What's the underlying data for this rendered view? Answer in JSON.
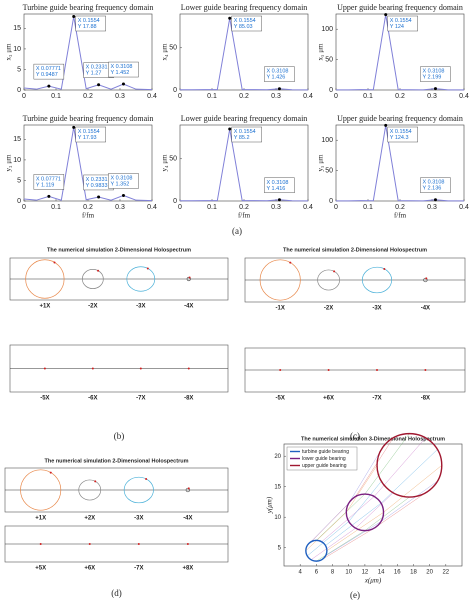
{
  "chart_data": [
    {
      "type": "line",
      "title": "Turbine guide bearing frequency domain",
      "ylabel": "x₃ μm",
      "x": [
        0,
        0.0389,
        0.0777,
        0.1166,
        0.1554,
        0.1943,
        0.2331,
        0.272,
        0.3108,
        0.35,
        0.4
      ],
      "values": [
        0.5,
        0.2,
        0.9487,
        0.2,
        17.88,
        0.3,
        1.27,
        0.2,
        1.452,
        0.2,
        0.1
      ],
      "color": "#8080d8",
      "xlim": [
        0,
        0.4
      ],
      "xticks": [
        0,
        0.1,
        0.2,
        0.3,
        0.4
      ],
      "ylim": [
        0,
        18.5
      ],
      "yticks": [
        0,
        5,
        10,
        15
      ],
      "datatips": [
        {
          "x": 0.0777,
          "y": 0.9487,
          "x_label": "X 0.07771",
          "y_label": "Y 0.9487"
        },
        {
          "x": 0.1554,
          "y": 17.88,
          "x_label": "X 0.1554",
          "y_label": "Y 17.88"
        },
        {
          "x": 0.2331,
          "y": 1.27,
          "x_label": "X 0.2331",
          "y_label": "Y 1.27"
        },
        {
          "x": 0.3108,
          "y": 1.452,
          "x_label": "X 0.3108",
          "y_label": "Y 1.452"
        }
      ]
    },
    {
      "type": "line",
      "title": "Lower guide bearing frequency domain",
      "ylabel": "x₄ μm",
      "x": [
        0,
        0.0389,
        0.0777,
        0.1166,
        0.1554,
        0.1943,
        0.2331,
        0.272,
        0.3108,
        0.35,
        0.4
      ],
      "values": [
        0.3,
        0.3,
        0.5,
        0.4,
        85.03,
        0.5,
        0.4,
        0.3,
        1.426,
        0.3,
        0.2
      ],
      "color": "#8080d8",
      "xlim": [
        0,
        0.4
      ],
      "xticks": [
        0,
        0.1,
        0.2,
        0.3,
        0.4
      ],
      "ylim": [
        0,
        90
      ],
      "yticks": [
        0,
        50
      ],
      "datatips": [
        {
          "x": 0.1554,
          "y": 85.03,
          "x_label": "X 0.1554",
          "y_label": "Y 85.03"
        },
        {
          "x": 0.3108,
          "y": 1.426,
          "x_label": "X 0.3108",
          "y_label": "Y 1.426"
        }
      ]
    },
    {
      "type": "line",
      "title": "Upper guide bearing frequency domain",
      "ylabel": "x₅ μm",
      "x": [
        0,
        0.0389,
        0.0777,
        0.1166,
        0.1554,
        0.1943,
        0.2331,
        0.272,
        0.3108,
        0.35,
        0.4
      ],
      "values": [
        0.3,
        0.3,
        0.6,
        0.5,
        124,
        0.6,
        0.5,
        0.3,
        2.199,
        0.3,
        0.2
      ],
      "color": "#8080d8",
      "xlim": [
        0,
        0.4
      ],
      "xticks": [
        0,
        0.1,
        0.2,
        0.3,
        0.4
      ],
      "ylim": [
        0,
        125
      ],
      "yticks": [
        0,
        50,
        100
      ],
      "datatips": [
        {
          "x": 0.1554,
          "y": 124,
          "x_label": "X 0.1554",
          "y_label": "Y 124"
        },
        {
          "x": 0.3108,
          "y": 2.199,
          "x_label": "X 0.3108",
          "y_label": "Y 2.199"
        }
      ]
    },
    {
      "type": "line",
      "title": "Turbine guide bearing frequency domain",
      "ylabel": "y₃ μm",
      "xlabel": "f/fm",
      "x": [
        0,
        0.0389,
        0.0777,
        0.1166,
        0.1554,
        0.1943,
        0.2331,
        0.272,
        0.3108,
        0.35,
        0.4
      ],
      "values": [
        0.5,
        0.2,
        1.119,
        0.2,
        17.93,
        0.3,
        0.9833,
        0.2,
        1.352,
        0.2,
        0.1
      ],
      "color": "#8080d8",
      "xlim": [
        0,
        0.4
      ],
      "xticks": [
        0,
        0.1,
        0.2,
        0.3,
        0.4
      ],
      "ylim": [
        0,
        18.5
      ],
      "yticks": [
        0,
        5,
        10,
        15
      ],
      "datatips": [
        {
          "x": 0.0777,
          "y": 1.119,
          "x_label": "X 0.07771",
          "y_label": "Y 1.119"
        },
        {
          "x": 0.1554,
          "y": 17.93,
          "x_label": "X 0.1554",
          "y_label": "Y 17.93"
        },
        {
          "x": 0.2331,
          "y": 0.9833,
          "x_label": "X 0.2331",
          "y_label": "Y 0.9833"
        },
        {
          "x": 0.3108,
          "y": 1.352,
          "x_label": "X 0.3108",
          "y_label": "Y 1.352"
        }
      ]
    },
    {
      "type": "line",
      "title": "Lower guide bearing frequency domain",
      "ylabel": "y₄ μm",
      "xlabel": "f/fm",
      "x": [
        0,
        0.0389,
        0.0777,
        0.1166,
        0.1554,
        0.1943,
        0.2331,
        0.272,
        0.3108,
        0.35,
        0.4
      ],
      "values": [
        0.3,
        0.3,
        0.5,
        0.4,
        85.2,
        0.5,
        0.4,
        0.3,
        1.416,
        0.3,
        0.2
      ],
      "color": "#8080d8",
      "xlim": [
        0,
        0.4
      ],
      "xticks": [
        0,
        0.1,
        0.2,
        0.3,
        0.4
      ],
      "ylim": [
        0,
        90
      ],
      "yticks": [
        0,
        50
      ],
      "datatips": [
        {
          "x": 0.1554,
          "y": 85.2,
          "x_label": "X 0.1554",
          "y_label": "Y 85.2"
        },
        {
          "x": 0.3108,
          "y": 1.416,
          "x_label": "X 0.3108",
          "y_label": "Y 1.416"
        }
      ]
    },
    {
      "type": "line",
      "title": "Upper guide bearing frequency domain",
      "ylabel": "y₅ μm",
      "xlabel": "f/fm",
      "x": [
        0,
        0.0389,
        0.0777,
        0.1166,
        0.1554,
        0.1943,
        0.2331,
        0.272,
        0.3108,
        0.35,
        0.4
      ],
      "values": [
        0.3,
        0.3,
        0.6,
        0.5,
        124.3,
        0.6,
        0.5,
        0.3,
        2.136,
        0.3,
        0.2
      ],
      "color": "#8080d8",
      "xlim": [
        0,
        0.4
      ],
      "xticks": [
        0,
        0.1,
        0.2,
        0.3,
        0.4
      ],
      "ylim": [
        0,
        125
      ],
      "yticks": [
        0,
        50,
        100
      ],
      "datatips": [
        {
          "x": 0.1554,
          "y": 124.3,
          "x_label": "X 0.1554",
          "y_label": "Y 124.3"
        },
        {
          "x": 0.3108,
          "y": 2.136,
          "x_label": "X 0.3108",
          "y_label": "Y 2.136"
        }
      ]
    },
    {
      "type": "ellipse",
      "title": "The numerical simulation 3-Dimensional Holospectrum",
      "xlabel": "x(μm)",
      "ylabel": "y(μm)",
      "xlim": [
        2,
        24
      ],
      "xticks": [
        4,
        6,
        8,
        10,
        12,
        14,
        16,
        18,
        20,
        22
      ],
      "ylim": [
        2,
        22
      ],
      "yticks": [
        5,
        10,
        15,
        20
      ],
      "legend": "upper left",
      "series": [
        {
          "name": "turbine guide bearing",
          "color": "#2060c0",
          "x": [
            6
          ],
          "values": [
            4.5
          ],
          "rx": [
            1.3
          ],
          "ry": [
            1.7
          ]
        },
        {
          "name": "lower guide bearing",
          "color": "#7a2080",
          "x": [
            12
          ],
          "values": [
            10.8
          ],
          "rx": [
            2.3
          ],
          "ry": [
            3
          ]
        },
        {
          "name": "upper guide bearing",
          "color": "#a01830",
          "x": [
            17.5
          ],
          "values": [
            18.5
          ],
          "rx": [
            4
          ],
          "ry": [
            5.2
          ]
        }
      ]
    }
  ],
  "holospectra": [
    {
      "title": "The numerical simulation 2-Dimensional Holospectrum",
      "top_labels": [
        "+1X",
        "-2X",
        "-3X",
        "-4X"
      ],
      "bottom_labels": [
        "-5X",
        "-6X",
        "-7X",
        "-8X"
      ],
      "label": "(b)"
    },
    {
      "title": "The numerical simulation 2-Dimensional Holospectrum",
      "top_labels": [
        "-1X",
        "-2X",
        "-3X",
        "-4X"
      ],
      "bottom_labels": [
        "-5X",
        "+6X",
        "-7X",
        "-8X"
      ],
      "label": "(c)"
    },
    {
      "title": "The numerical simulation 2-Dimensional Holospectrum",
      "top_labels": [
        "+1X",
        "+2X",
        "-3X",
        "-4X"
      ],
      "bottom_labels": [
        "+5X",
        "+6X",
        "-7X",
        "+8X"
      ],
      "label": "(d)"
    }
  ],
  "figure_labels": {
    "a": "(a)",
    "e": "(e)"
  }
}
